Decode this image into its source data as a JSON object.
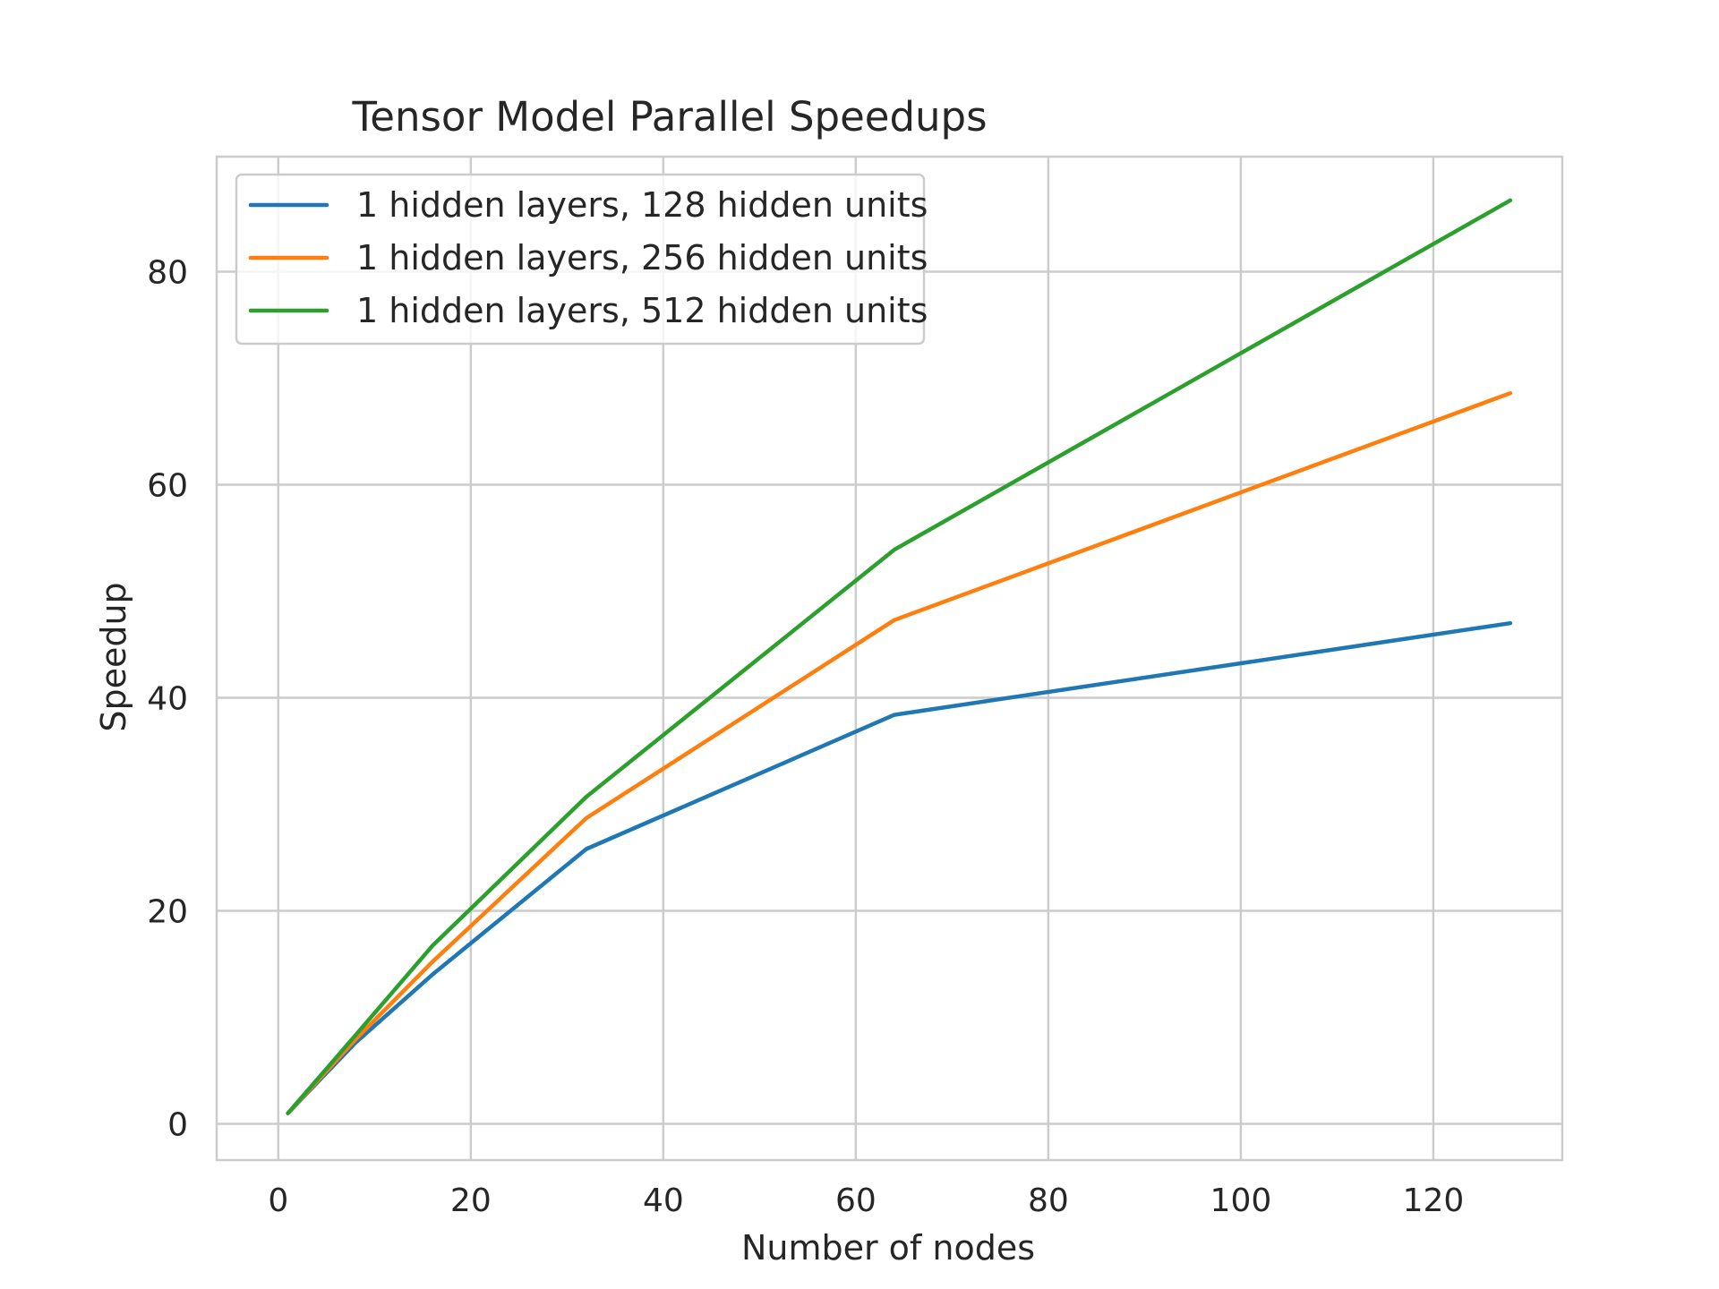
{
  "chart_data": {
    "type": "line",
    "title": "Tensor Model Parallel Speedups",
    "xlabel": "Number of nodes",
    "ylabel": "Speedup",
    "xlim": [
      -6.4,
      133.4
    ],
    "ylim": [
      -3.4,
      90.8
    ],
    "xticks": [
      0,
      20,
      40,
      60,
      80,
      100,
      120
    ],
    "yticks": [
      0,
      20,
      40,
      60,
      80
    ],
    "grid": true,
    "legend_position": "top-left",
    "x": [
      1,
      8,
      16,
      32,
      64,
      128
    ],
    "series": [
      {
        "name": "1 hidden layers, 128 hidden units",
        "color": "#1f77b4",
        "values": [
          1.0,
          7.6,
          14.0,
          25.8,
          38.4,
          47.0
        ]
      },
      {
        "name": "1 hidden layers, 256 hidden units",
        "color": "#ff7f0e",
        "values": [
          1.0,
          7.9,
          15.2,
          28.7,
          47.3,
          68.6
        ]
      },
      {
        "name": "1 hidden layers, 512 hidden units",
        "color": "#2ca02c",
        "values": [
          1.0,
          8.3,
          16.7,
          30.7,
          53.9,
          86.7
        ]
      }
    ]
  }
}
